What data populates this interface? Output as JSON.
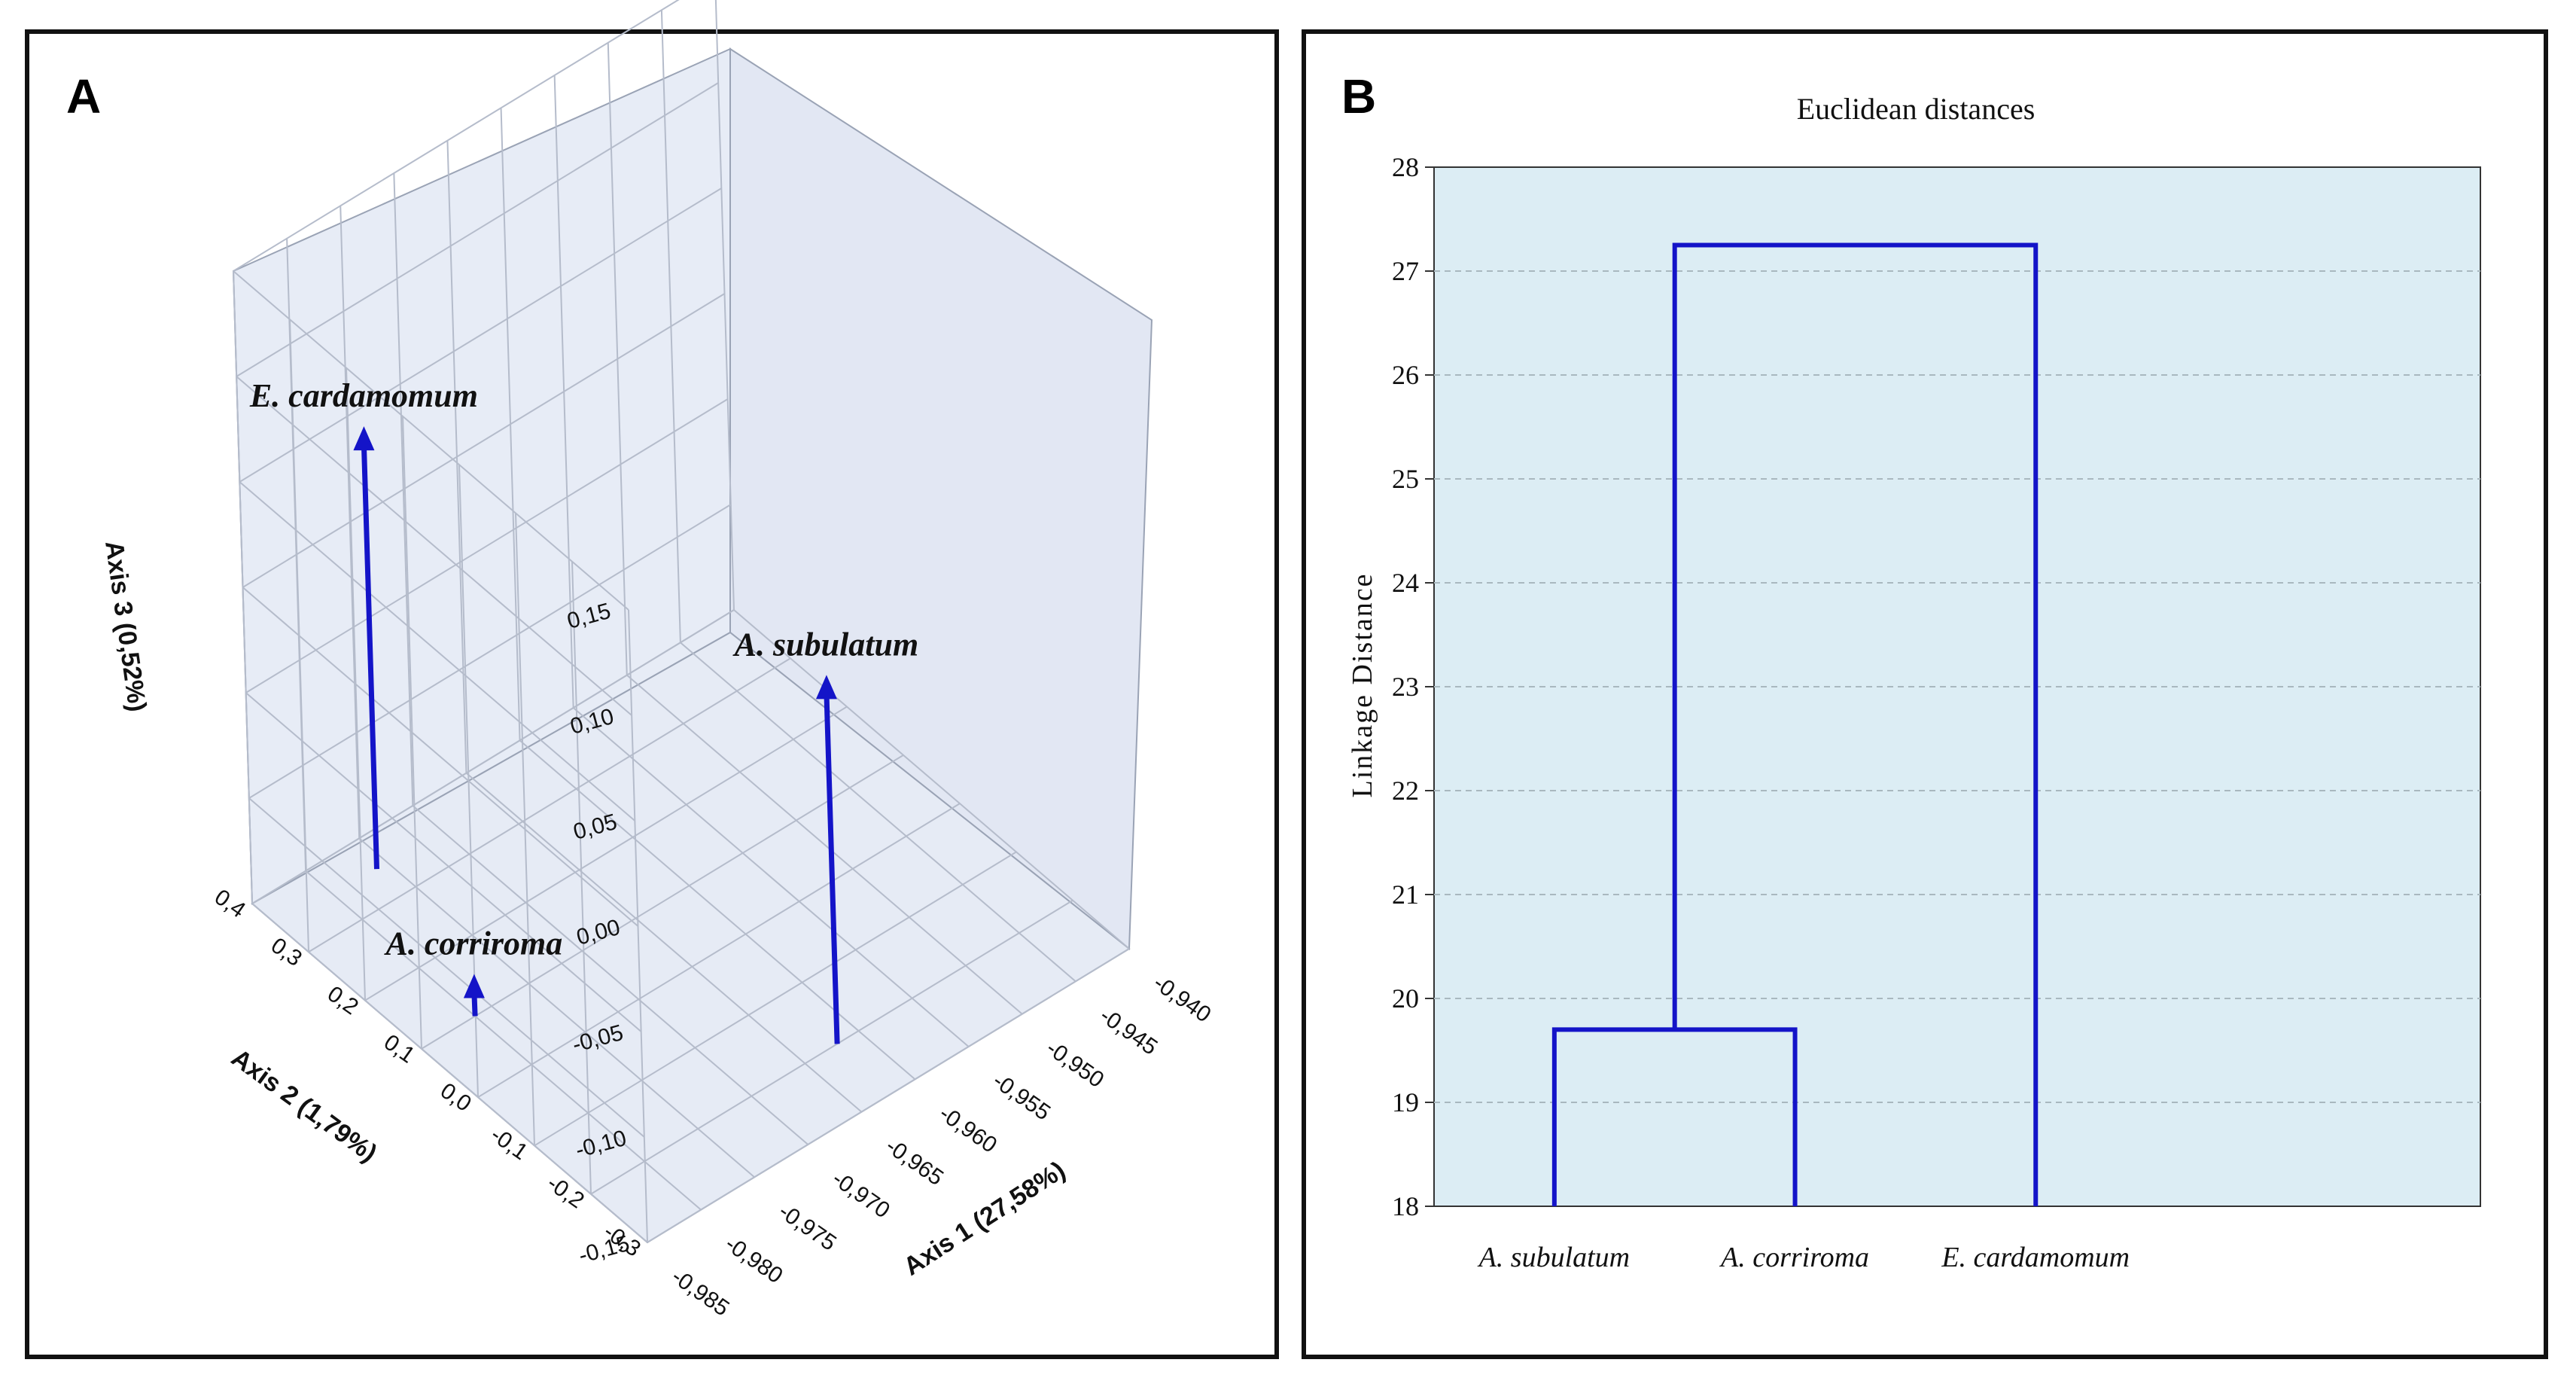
{
  "panels": {
    "a_label": "A",
    "b_label": "B"
  },
  "chart_data": [
    {
      "type": "scatter",
      "subtype": "3d-scatter",
      "xlabel": "Axis 1 (27,58%)",
      "ylabel": "Axis 2 (1,79%)",
      "zlabel": "Axis 3 (0,52%)",
      "x_ticks": [
        "-0,985",
        "-0,980",
        "-0,975",
        "-0,970",
        "-0,965",
        "-0,960",
        "-0,955",
        "-0,950",
        "-0,945",
        "-0,940"
      ],
      "y_ticks": [
        "-0,3",
        "-0,2",
        "-0,1",
        "0,0",
        "0,1",
        "0,2",
        "0,3",
        "0,4"
      ],
      "z_ticks": [
        "-0,15",
        "-0,10",
        "-0,05",
        "0,00",
        "0,05",
        "0,10",
        "0,15"
      ],
      "xlim": [
        -0.985,
        -0.94
      ],
      "ylim": [
        -0.3,
        0.4
      ],
      "zlim": [
        -0.15,
        0.15
      ],
      "points": [
        {
          "label": "E. cardamomum",
          "x": -0.976,
          "y": 0.35,
          "z": 0.055
        },
        {
          "label": "A. subulatum",
          "x": -0.962,
          "y": -0.2,
          "z": 0.02
        },
        {
          "label": "A. corriroma",
          "x": -0.98,
          "y": 0.1,
          "z": -0.135
        }
      ]
    },
    {
      "type": "dendrogram",
      "title": "Euclidean distances",
      "ylabel": "Linkage Distance",
      "xlabel": "",
      "ylim": [
        18,
        28
      ],
      "y_ticks": [
        "18",
        "19",
        "20",
        "21",
        "22",
        "23",
        "24",
        "25",
        "26",
        "27",
        "28"
      ],
      "leaves": [
        "A. subulatum",
        "A. corriroma",
        "E. cardamomum"
      ],
      "merges": [
        {
          "left": "A. subulatum",
          "right": "A. corriroma",
          "height": 19.7
        },
        {
          "left": "cluster",
          "right": "E. cardamomum",
          "height": 27.25
        }
      ],
      "grid": true,
      "colors": {
        "background": "#dcedf4",
        "line": "#1414c8",
        "grid": "#a9b8bf"
      }
    }
  ]
}
